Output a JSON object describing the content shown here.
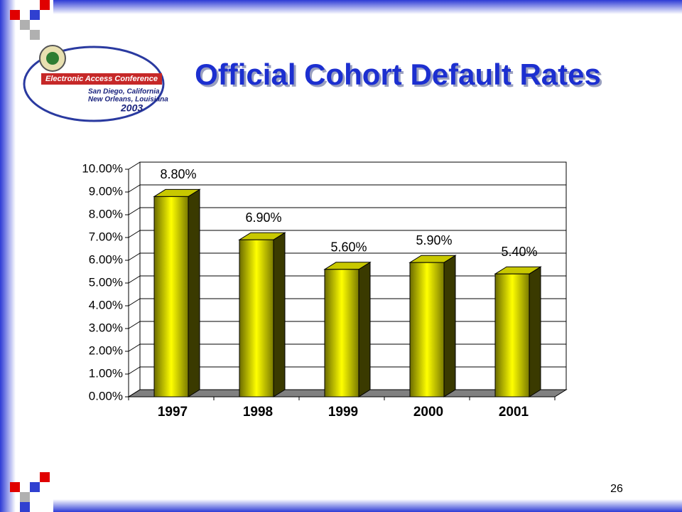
{
  "slide": {
    "logo_lines": [
      "Electronic Access Conference",
      "San Diego, California",
      "New Orleans, Louisiana",
      "2003"
    ],
    "page_number": "26"
  },
  "chart_data": {
    "type": "bar",
    "title": "Official Cohort Default Rates",
    "categories": [
      "1997",
      "1998",
      "1999",
      "2000",
      "2001"
    ],
    "values": [
      8.8,
      6.9,
      5.6,
      5.9,
      5.4
    ],
    "value_labels": [
      "8.80%",
      "6.90%",
      "5.60%",
      "5.90%",
      "5.40%"
    ],
    "color": "#ffff00",
    "ylim": [
      0,
      10
    ],
    "yticks": [
      {
        "value": 0,
        "label": "0.00%"
      },
      {
        "value": 1,
        "label": "1.00%"
      },
      {
        "value": 2,
        "label": "2.00%"
      },
      {
        "value": 3,
        "label": "3.00%"
      },
      {
        "value": 4,
        "label": "4.00%"
      },
      {
        "value": 5,
        "label": "5.00%"
      },
      {
        "value": 6,
        "label": "6.00%"
      },
      {
        "value": 7,
        "label": "7.00%"
      },
      {
        "value": 8,
        "label": "8.00%"
      },
      {
        "value": 9,
        "label": "9.00%"
      },
      {
        "value": 10,
        "label": "10.00%"
      }
    ],
    "grid": true
  }
}
